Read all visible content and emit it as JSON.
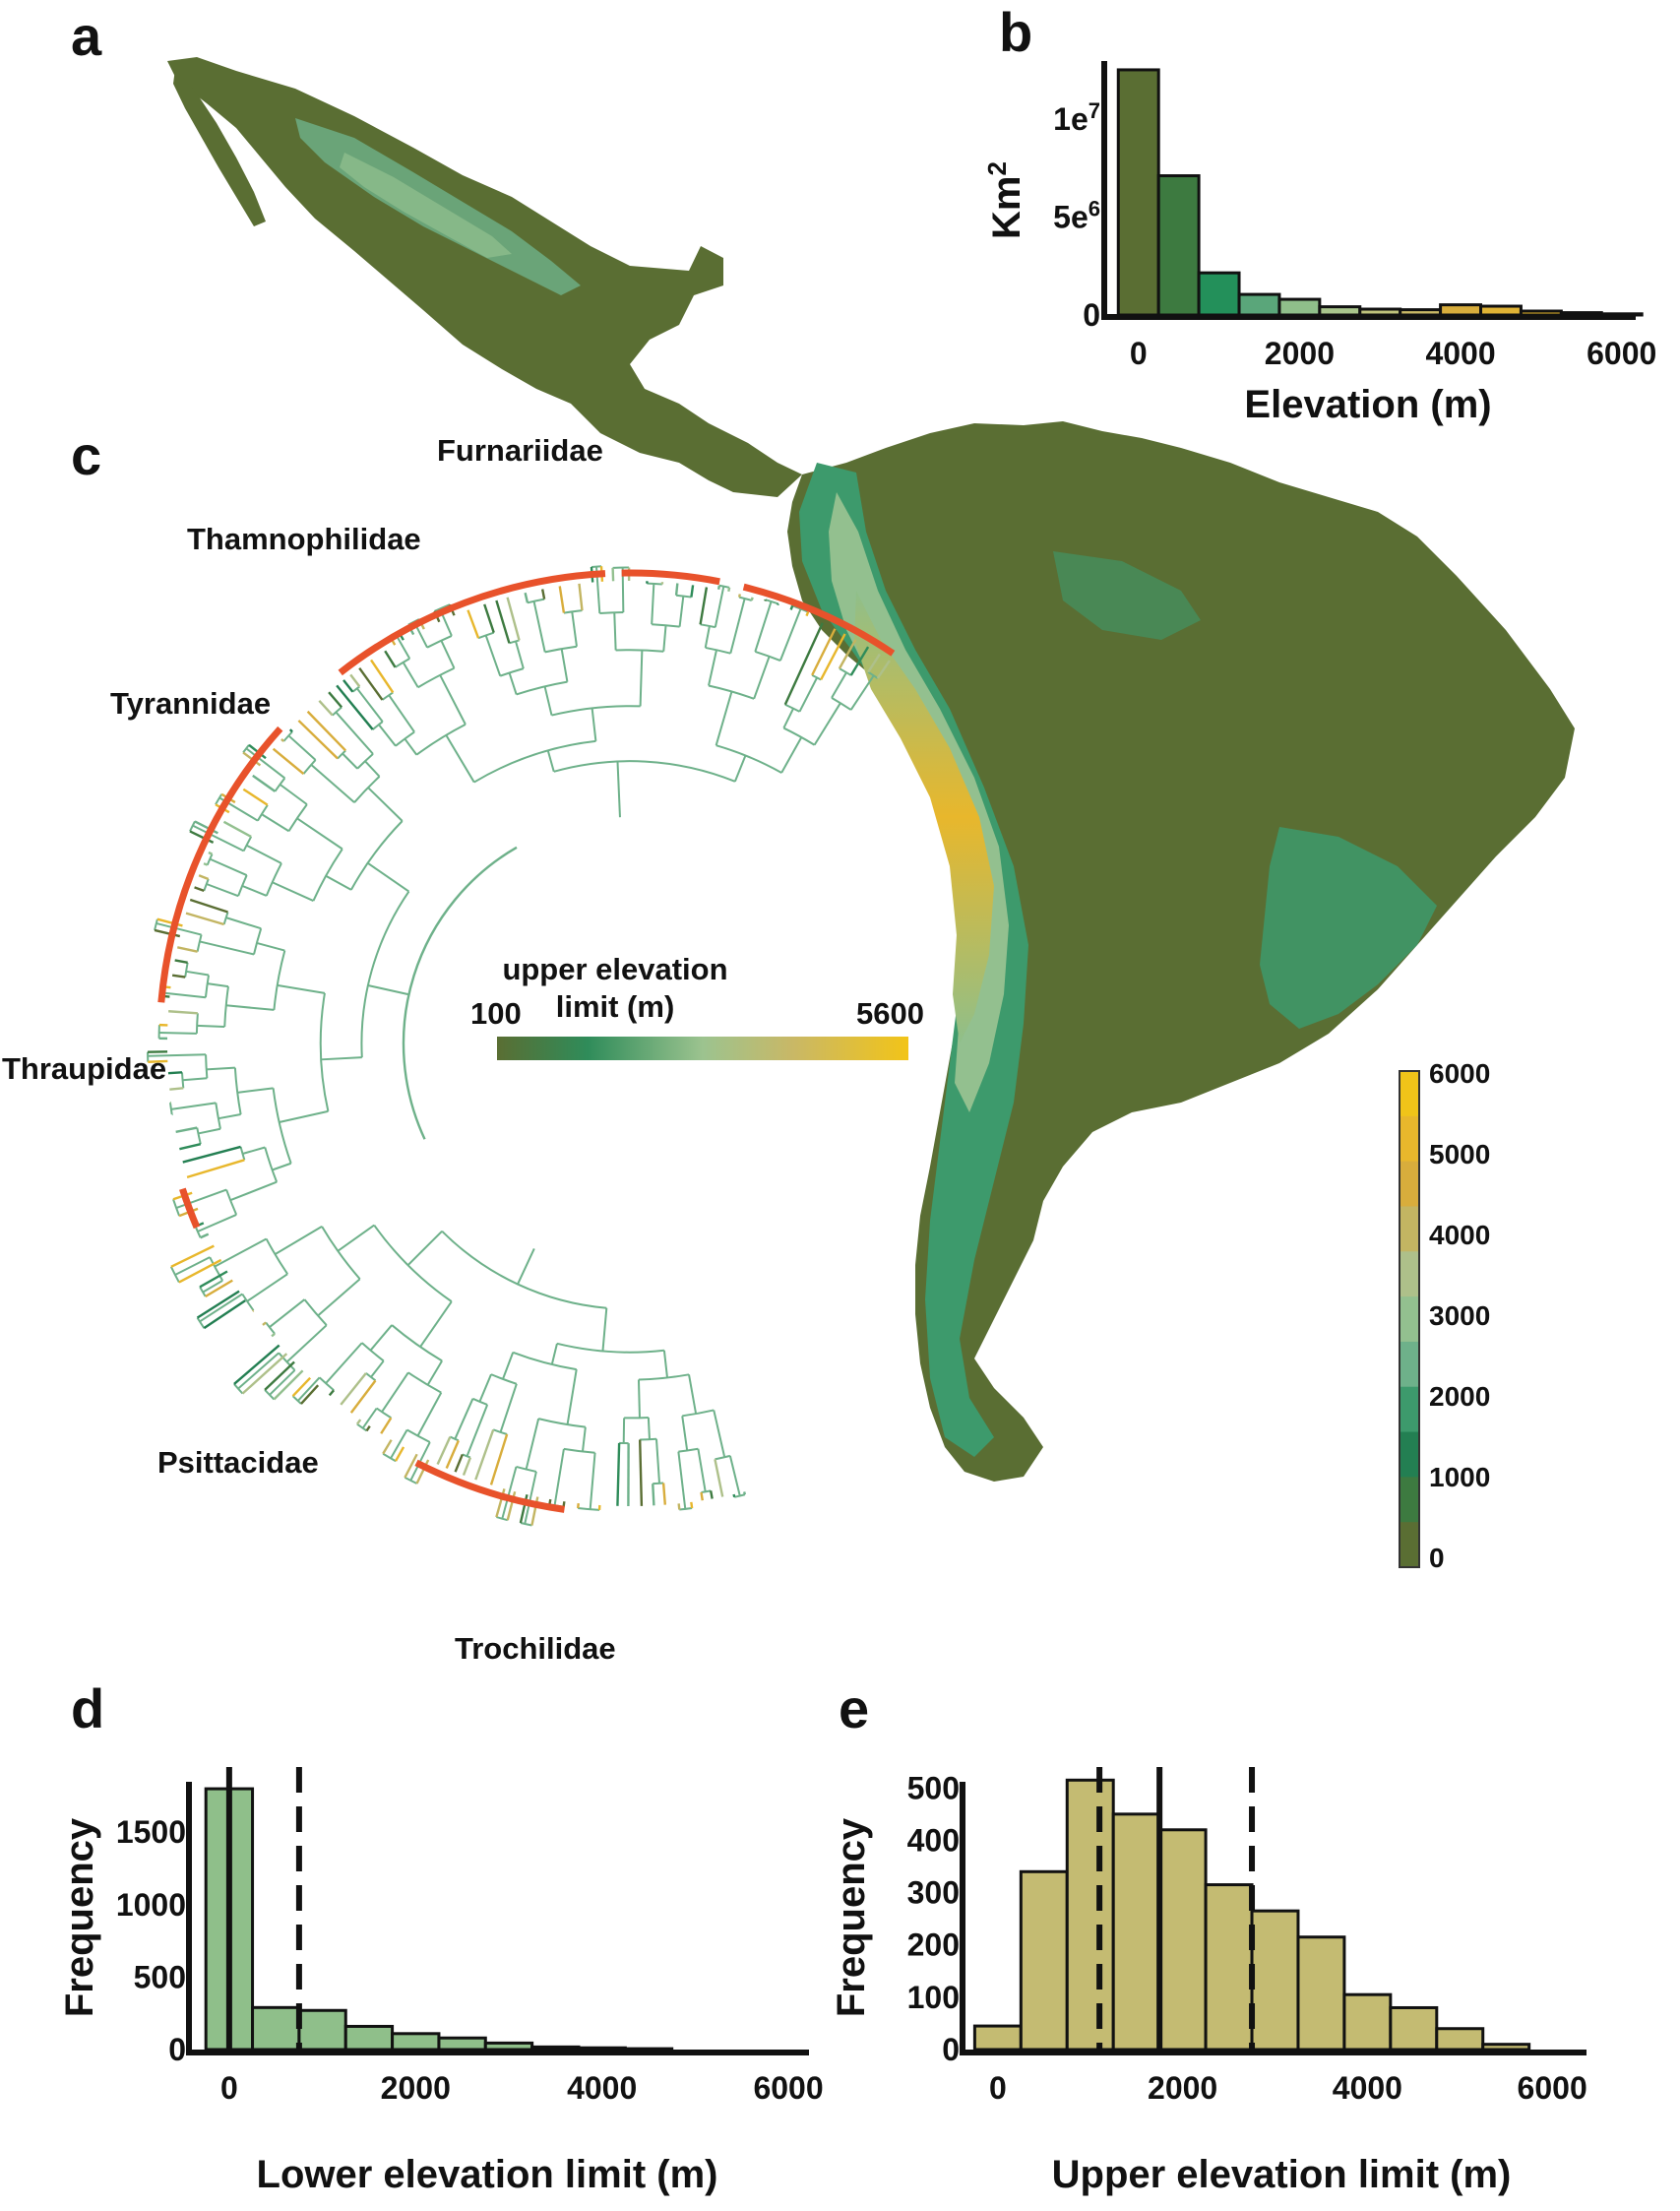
{
  "panels": {
    "a": "a",
    "b": "b",
    "c": "c",
    "d": "d",
    "e": "e"
  },
  "colors": {
    "lowland": "#5a6e33",
    "green": "#2f8c5a",
    "pale": "#8fbf8a",
    "tan": "#c9bd6e",
    "gold": "#efc21a",
    "clade_arc": "#e8522b",
    "hist_d": "#8fbf8a",
    "hist_e": "#c4bb72"
  },
  "map_legend": {
    "ticks": [
      "6000",
      "5000",
      "4000",
      "3000",
      "2000",
      "1000",
      "0"
    ],
    "bin_colors": [
      "#f0c419",
      "#e8b72c",
      "#d8ad3c",
      "#c3b562",
      "#aec08a",
      "#93c08f",
      "#6eb18a",
      "#3d9a6c",
      "#237f52",
      "#3d7a40",
      "#5a6e33"
    ]
  },
  "tree_legend": {
    "title_line1": "upper elevation",
    "title_line2": "limit (m)",
    "min_label": "100",
    "max_label": "5600"
  },
  "clades": [
    "Furnariidae",
    "Thamnophilidae",
    "Tyrannidae",
    "Thraupidae",
    "Psittacidae",
    "Trochilidae"
  ],
  "chart_data": [
    {
      "panel": "b",
      "type": "bar",
      "xlabel": "Elevation (m)",
      "ylabel": "Km2",
      "ylabel_main": "Km",
      "ylabel_sup": "2",
      "x_ticks": [
        "0",
        "2000",
        "4000",
        "6000"
      ],
      "x_tick_values": [
        0,
        2000,
        4000,
        6000
      ],
      "y_ticks": [
        {
          "label": "1e",
          "sup": "7",
          "value": 10000000
        },
        {
          "label": "5e",
          "sup": "6",
          "value": 5000000
        },
        {
          "label": "0",
          "sup": "",
          "value": 0
        }
      ],
      "bin_width": 500,
      "bin_centers": [
        0,
        500,
        1000,
        1500,
        2000,
        2500,
        3000,
        3500,
        4000,
        4500,
        5000,
        5500,
        6000
      ],
      "values": [
        12500000,
        7100000,
        2150000,
        1050000,
        800000,
        420000,
        300000,
        270000,
        520000,
        450000,
        200000,
        120000,
        60000
      ],
      "bar_colors": [
        "#5a6e33",
        "#3d7a40",
        "#23905a",
        "#5aa67a",
        "#8fbf8a",
        "#a9c58c",
        "#bfc27c",
        "#c9b866",
        "#d8ad3c",
        "#e0b335",
        "#e8b72c",
        "#efc21a",
        "#f0c419"
      ],
      "xlim": [
        -400,
        6150
      ],
      "ylim": [
        0,
        13300000
      ]
    },
    {
      "panel": "d",
      "type": "bar",
      "xlabel": "Lower elevation limit (m)",
      "ylabel": "Frequency",
      "x_ticks": [
        "0",
        "2000",
        "4000",
        "6000"
      ],
      "x_tick_values": [
        0,
        2000,
        4000,
        6000
      ],
      "y_ticks": [
        "0",
        "500",
        "1000",
        "1500"
      ],
      "y_tick_values": [
        0,
        500,
        1000,
        1500
      ],
      "bin_width": 500,
      "bin_centers": [
        0,
        500,
        1000,
        1500,
        2000,
        2500,
        3000,
        3500,
        4000,
        4500
      ],
      "values": [
        1800,
        290,
        270,
        160,
        110,
        80,
        45,
        18,
        12,
        6
      ],
      "median": 0,
      "dashed_lines": [
        750
      ],
      "xlim": [
        -400,
        6200
      ],
      "ylim": [
        0,
        1950
      ]
    },
    {
      "panel": "e",
      "type": "bar",
      "xlabel": "Upper elevation limit (m)",
      "ylabel": "Frequency",
      "x_ticks": [
        "0",
        "2000",
        "4000",
        "6000"
      ],
      "x_tick_values": [
        0,
        2000,
        4000,
        6000
      ],
      "y_ticks": [
        "0",
        "100",
        "200",
        "300",
        "400",
        "500"
      ],
      "y_tick_values": [
        0,
        100,
        200,
        300,
        400,
        500
      ],
      "bin_width": 500,
      "bin_centers": [
        0,
        500,
        1000,
        1500,
        2000,
        2500,
        3000,
        3500,
        4000,
        4500,
        5000,
        5500
      ],
      "values": [
        45,
        340,
        515,
        450,
        420,
        315,
        265,
        215,
        105,
        80,
        40,
        10
      ],
      "median": 1750,
      "dashed_lines": [
        1100,
        2750
      ],
      "xlim": [
        -350,
        6350
      ],
      "ylim": [
        0,
        540
      ]
    }
  ]
}
